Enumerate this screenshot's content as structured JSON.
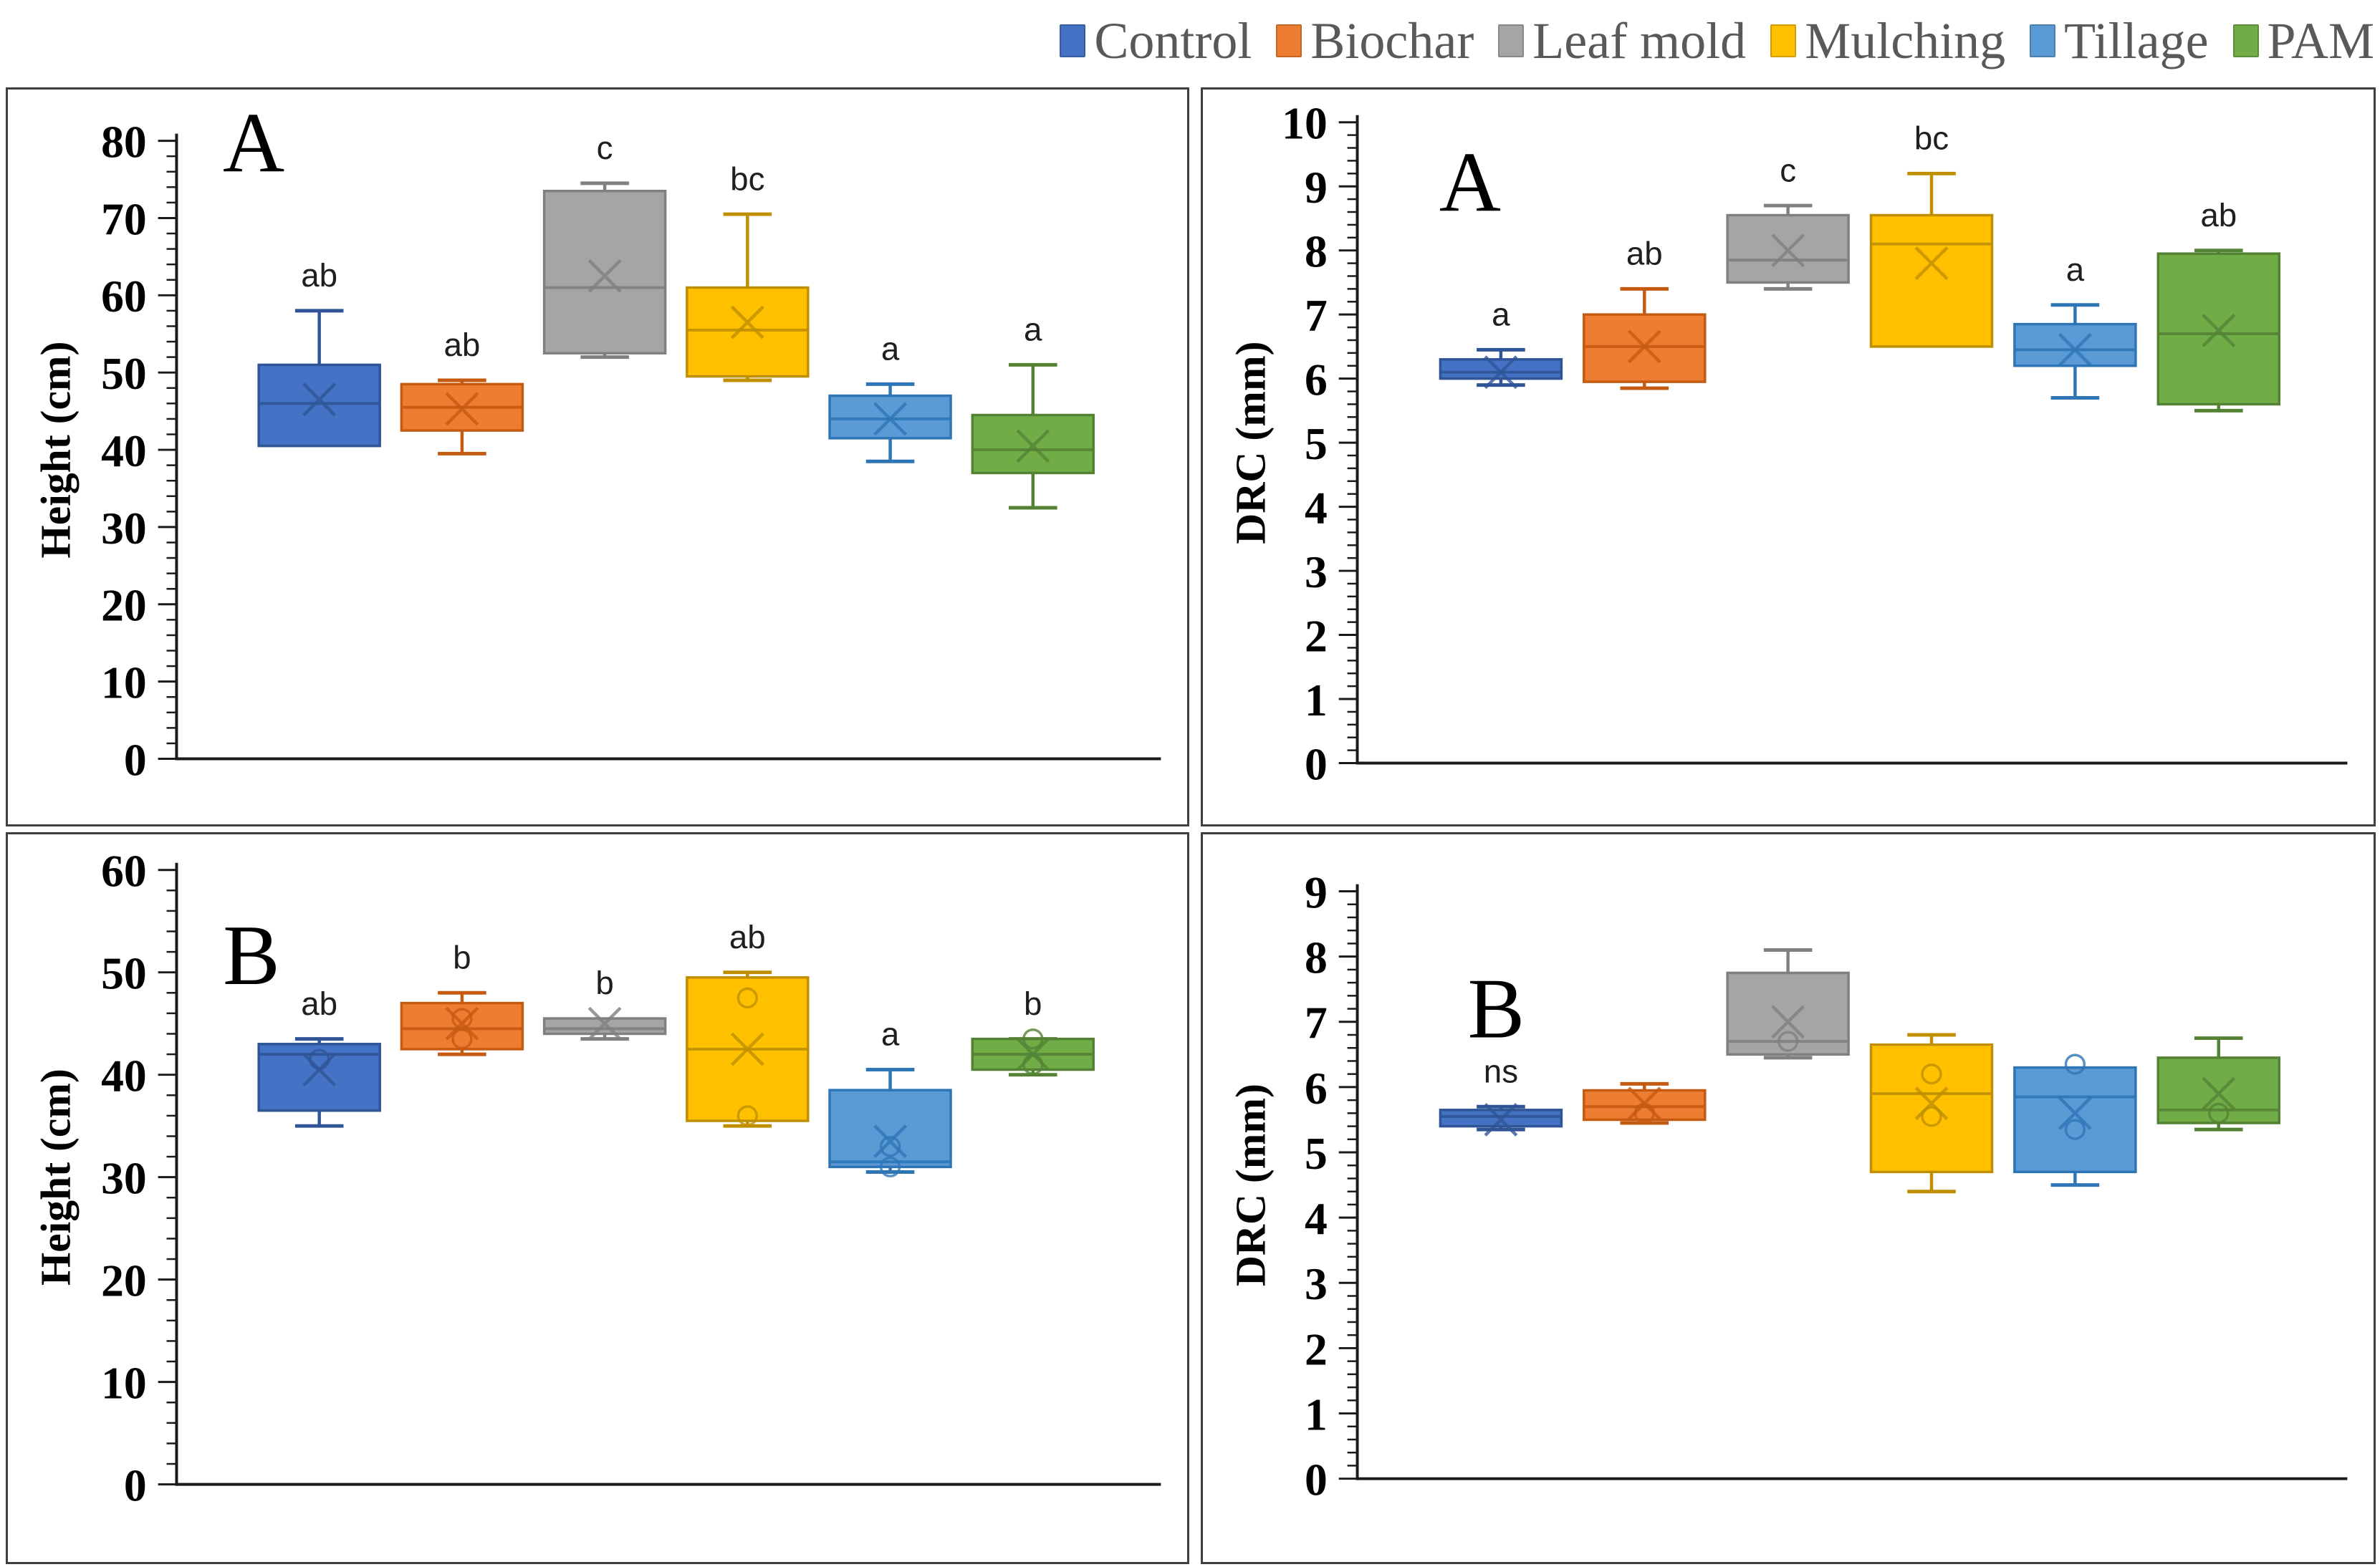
{
  "legend": {
    "items": [
      {
        "label": "Control",
        "color": "#4472C4",
        "border": "#2F5597"
      },
      {
        "label": "Biochar",
        "color": "#ED7D31",
        "border": "#C55A11"
      },
      {
        "label": "Leaf mold",
        "color": "#A5A5A5",
        "border": "#808080"
      },
      {
        "label": "Mulching",
        "color": "#FFC000",
        "border": "#BF8F00"
      },
      {
        "label": "Tillage",
        "color": "#5B9BD5",
        "border": "#2E75B6"
      },
      {
        "label": "PAM",
        "color": "#70AD47",
        "border": "#548235"
      }
    ]
  },
  "chart_data": [
    {
      "type": "box",
      "panel_letter": "A",
      "ylabel": "Height (cm)",
      "ylim": [
        0,
        80
      ],
      "ytick_step": 10,
      "minor_ticks_per_major": 4,
      "grid": false,
      "legend_position": "top-right-of-figure",
      "categories": [
        "Control",
        "Biochar",
        "Leaf mold",
        "Mulching",
        "Tillage",
        "PAM"
      ],
      "series": [
        {
          "name": "Control",
          "q1": 40.5,
          "median": 46,
          "q3": 51,
          "mean": 46.5,
          "whisker_low": null,
          "whisker_high": 58,
          "outliers": [],
          "sig": "ab"
        },
        {
          "name": "Biochar",
          "q1": 42.5,
          "median": 45.5,
          "q3": 48.5,
          "mean": 45.3,
          "whisker_low": 39.5,
          "whisker_high": 49,
          "outliers": [],
          "sig": "ab"
        },
        {
          "name": "Leaf mold",
          "q1": 52.5,
          "median": 61,
          "q3": 73.5,
          "mean": 62.5,
          "whisker_low": 52,
          "whisker_high": 74.5,
          "outliers": [],
          "sig": "c"
        },
        {
          "name": "Mulching",
          "q1": 49.5,
          "median": 55.5,
          "q3": 61,
          "mean": 56.5,
          "whisker_low": 49,
          "whisker_high": 70.5,
          "outliers": [],
          "sig": "bc"
        },
        {
          "name": "Tillage",
          "q1": 41.5,
          "median": 44,
          "q3": 47,
          "mean": 44,
          "whisker_low": 38.5,
          "whisker_high": 48.5,
          "outliers": [],
          "sig": "a"
        },
        {
          "name": "PAM",
          "q1": 37,
          "median": 40,
          "q3": 44.5,
          "mean": 40.5,
          "whisker_low": 32.5,
          "whisker_high": 51,
          "outliers": [],
          "sig": "a"
        }
      ]
    },
    {
      "type": "box",
      "panel_letter": "A",
      "ylabel": "DRC (mm)",
      "ylim": [
        0,
        10
      ],
      "ytick_step": 1,
      "minor_ticks_per_major": 4,
      "grid": false,
      "legend_position": "top-right-of-figure",
      "categories": [
        "Control",
        "Biochar",
        "Leaf mold",
        "Mulching",
        "Tillage",
        "PAM"
      ],
      "series": [
        {
          "name": "Control",
          "q1": 6.0,
          "median": 6.1,
          "q3": 6.3,
          "mean": 6.1,
          "whisker_low": 5.9,
          "whisker_high": 6.45,
          "outliers": [],
          "sig": "a"
        },
        {
          "name": "Biochar",
          "q1": 5.95,
          "median": 6.5,
          "q3": 7.0,
          "mean": 6.5,
          "whisker_low": 5.85,
          "whisker_high": 7.4,
          "outliers": [],
          "sig": "ab"
        },
        {
          "name": "Leaf mold",
          "q1": 7.5,
          "median": 7.85,
          "q3": 8.55,
          "mean": 8.0,
          "whisker_low": 7.4,
          "whisker_high": 8.7,
          "outliers": [],
          "sig": "c"
        },
        {
          "name": "Mulching",
          "q1": 6.5,
          "median": 8.1,
          "q3": 8.55,
          "mean": 7.8,
          "whisker_low": null,
          "whisker_high": 9.2,
          "outliers": [],
          "sig": "bc"
        },
        {
          "name": "Tillage",
          "q1": 6.2,
          "median": 6.45,
          "q3": 6.85,
          "mean": 6.45,
          "whisker_low": 5.7,
          "whisker_high": 7.15,
          "outliers": [],
          "sig": "a"
        },
        {
          "name": "PAM",
          "q1": 5.6,
          "median": 6.7,
          "q3": 7.95,
          "mean": 6.75,
          "whisker_low": 5.5,
          "whisker_high": 8.0,
          "outliers": [],
          "sig": "ab"
        }
      ]
    },
    {
      "type": "box",
      "panel_letter": "B",
      "ylabel": "Height (cm)",
      "ylim": [
        0,
        60
      ],
      "ytick_step": 10,
      "minor_ticks_per_major": 4,
      "grid": false,
      "legend_position": "top-right-of-figure",
      "categories": [
        "Control",
        "Biochar",
        "Leaf mold",
        "Mulching",
        "Tillage",
        "PAM"
      ],
      "series": [
        {
          "name": "Control",
          "q1": 36.5,
          "median": 42,
          "q3": 43,
          "mean": 40.5,
          "whisker_low": 35,
          "whisker_high": 43.5,
          "outliers": [
            41.5
          ],
          "sig": "ab"
        },
        {
          "name": "Biochar",
          "q1": 42.5,
          "median": 44.5,
          "q3": 47,
          "mean": 45,
          "whisker_low": 42,
          "whisker_high": 48,
          "outliers": [
            45.5,
            43.5
          ],
          "sig": "b"
        },
        {
          "name": "Leaf mold",
          "q1": 44,
          "median": 44.5,
          "q3": 45.5,
          "mean": 45,
          "whisker_low": 43.5,
          "whisker_high": null,
          "outliers": [],
          "sig": "b"
        },
        {
          "name": "Mulching",
          "q1": 35.5,
          "median": 42.5,
          "q3": 49.5,
          "mean": 42.5,
          "whisker_low": 35,
          "whisker_high": 50,
          "outliers": [
            47.5,
            36
          ],
          "sig": "ab"
        },
        {
          "name": "Tillage",
          "q1": 31,
          "median": 31.5,
          "q3": 38.5,
          "mean": 33.5,
          "whisker_low": 30.5,
          "whisker_high": 40.5,
          "outliers": [
            33,
            31
          ],
          "sig": "a"
        },
        {
          "name": "PAM",
          "q1": 40.5,
          "median": 42,
          "q3": 43.5,
          "mean": 42,
          "whisker_low": 40,
          "whisker_high": 43.5,
          "outliers": [
            43.5,
            41
          ],
          "sig": "b"
        }
      ]
    },
    {
      "type": "box",
      "panel_letter": "B",
      "ylabel": "DRC (mm)",
      "ylim": [
        0,
        9
      ],
      "ytick_step": 1,
      "minor_ticks_per_major": 4,
      "grid": false,
      "legend_position": "top-right-of-figure",
      "categories": [
        "Control",
        "Biochar",
        "Leaf mold",
        "Mulching",
        "Tillage",
        "PAM"
      ],
      "series": [
        {
          "name": "Control",
          "q1": 5.4,
          "median": 5.55,
          "q3": 5.65,
          "mean": 5.5,
          "whisker_low": 5.35,
          "whisker_high": 5.7,
          "outliers": [],
          "sig": "ns"
        },
        {
          "name": "Biochar",
          "q1": 5.5,
          "median": 5.7,
          "q3": 5.95,
          "mean": 5.75,
          "whisker_low": 5.45,
          "whisker_high": 6.05,
          "outliers": [
            5.6
          ],
          "sig": ""
        },
        {
          "name": "Leaf mold",
          "q1": 6.5,
          "median": 6.7,
          "q3": 7.75,
          "mean": 7.0,
          "whisker_low": 6.45,
          "whisker_high": 8.1,
          "outliers": [
            6.7
          ],
          "sig": ""
        },
        {
          "name": "Mulching",
          "q1": 4.7,
          "median": 5.9,
          "q3": 6.65,
          "mean": 5.75,
          "whisker_low": 4.4,
          "whisker_high": 6.8,
          "outliers": [
            6.2,
            5.55
          ],
          "sig": ""
        },
        {
          "name": "Tillage",
          "q1": 4.7,
          "median": 5.85,
          "q3": 6.3,
          "mean": 5.6,
          "whisker_low": 4.5,
          "whisker_high": null,
          "outliers": [
            6.35,
            5.35
          ],
          "sig": ""
        },
        {
          "name": "PAM",
          "q1": 5.45,
          "median": 5.65,
          "q3": 6.45,
          "mean": 5.9,
          "whisker_low": 5.35,
          "whisker_high": 6.75,
          "outliers": [
            5.6
          ],
          "sig": ""
        }
      ]
    }
  ]
}
